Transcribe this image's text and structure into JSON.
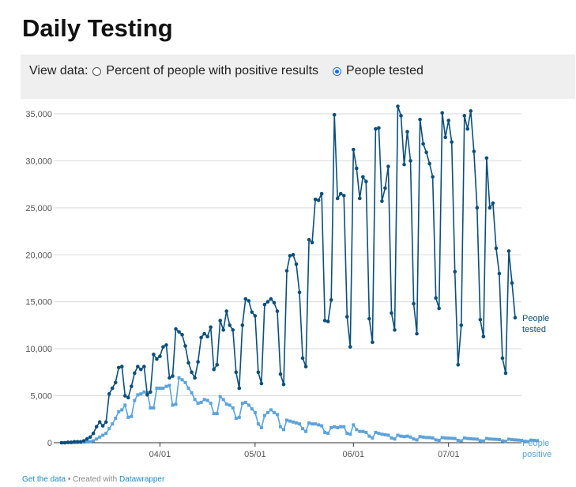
{
  "title": "Daily Testing",
  "controls": {
    "label": "View data:",
    "options": [
      {
        "label": "Percent of people with positive results",
        "selected": false
      },
      {
        "label": "People tested",
        "selected": true
      }
    ]
  },
  "footer": {
    "data_link": "Get the data",
    "separator": " • Created with ",
    "tool_link": "Datawrapper"
  },
  "colors": {
    "tested": "#0b4f7c",
    "positive": "#5ba3dc",
    "grid": "#d9d9d9",
    "axis": "#333333",
    "tick_text": "#555555",
    "accent_link": "#1a8bc1"
  },
  "chart_data": {
    "type": "line",
    "title": "Daily Testing",
    "x_start": "03/01",
    "x_interval_days": 1,
    "ylim": [
      0,
      35000
    ],
    "y_ticks": [
      0,
      5000,
      10000,
      15000,
      20000,
      25000,
      30000,
      35000
    ],
    "y_tick_labels": [
      "0",
      "5,000",
      "10,000",
      "15,000",
      "20,000",
      "25,000",
      "30,000",
      "35,000"
    ],
    "x_tick_labels": [
      "04/01",
      "05/01",
      "06/01",
      "07/01"
    ],
    "x_tick_dates": [
      "04/01",
      "05/01",
      "06/01",
      "07/01"
    ],
    "grid": true,
    "legend": "line-end labels",
    "series": [
      {
        "name": "People tested",
        "label_lines": [
          "People",
          "tested"
        ],
        "color": "#0b4f7c",
        "values": [
          0,
          0,
          50,
          50,
          100,
          100,
          100,
          200,
          400,
          600,
          1000,
          1700,
          2200,
          1800,
          2200,
          5200,
          5800,
          6400,
          8000,
          8100,
          5000,
          4800,
          6000,
          7400,
          8100,
          7800,
          8100,
          5100,
          5400,
          9400,
          8900,
          9200,
          10200,
          10400,
          6900,
          7100,
          12100,
          11800,
          11500,
          10300,
          8500,
          7500,
          6900,
          8600,
          11200,
          11600,
          11300,
          12300,
          7800,
          8300,
          13000,
          12000,
          14000,
          12500,
          12000,
          7500,
          5800,
          12500,
          15300,
          15100,
          13900,
          13500,
          7500,
          6300,
          14700,
          15000,
          15300,
          14900,
          14000,
          7300,
          6200,
          18300,
          19900,
          20000,
          19000,
          16000,
          9000,
          8100,
          21600,
          21300,
          25900,
          25800,
          26500,
          13000,
          12900,
          15200,
          34900,
          26000,
          26500,
          26300,
          13400,
          10200,
          31200,
          29200,
          26000,
          28300,
          27800,
          13200,
          10700,
          33400,
          33500,
          25700,
          27100,
          29400,
          13800,
          12000,
          35800,
          34800,
          29600,
          33100,
          30000,
          14800,
          11600,
          34400,
          31800,
          30900,
          29700,
          28300,
          15400,
          14300,
          35100,
          32500,
          34300,
          32000,
          18200,
          8300,
          12500,
          34800,
          33400,
          35300,
          31000,
          25000,
          13100,
          11300,
          30300,
          25000,
          25500,
          20700,
          18000,
          9000,
          7400,
          20400,
          17000,
          13300
        ]
      },
      {
        "name": "People positive",
        "label_lines": [
          "People",
          "positive"
        ],
        "color": "#5ba3dc",
        "values": [
          0,
          0,
          0,
          10,
          20,
          30,
          40,
          60,
          80,
          100,
          200,
          400,
          600,
          800,
          1000,
          1500,
          2000,
          2600,
          3300,
          3500,
          4000,
          2700,
          2800,
          4500,
          5100,
          5200,
          5400,
          5300,
          3700,
          3700,
          5800,
          5800,
          5800,
          6000,
          6100,
          4000,
          4100,
          6900,
          6700,
          6400,
          5800,
          5300,
          4600,
          4200,
          4300,
          4600,
          4500,
          4200,
          3100,
          3100,
          4900,
          4600,
          4100,
          4000,
          3700,
          2600,
          2700,
          4200,
          4300,
          4000,
          3600,
          3200,
          2000,
          1600,
          2900,
          3200,
          3500,
          3200,
          3000,
          1700,
          1400,
          2400,
          2300,
          2200,
          2100,
          2000,
          1500,
          1200,
          2100,
          2000,
          2000,
          1900,
          1800,
          1100,
          1000,
          1600,
          1700,
          1600,
          1700,
          1700,
          1000,
          900,
          1900,
          1400,
          1200,
          1200,
          1100,
          700,
          500,
          1100,
          1000,
          900,
          850,
          800,
          500,
          400,
          800,
          700,
          650,
          700,
          600,
          400,
          300,
          650,
          600,
          550,
          550,
          500,
          300,
          250,
          550,
          500,
          480,
          470,
          450,
          250,
          200,
          500,
          450,
          420,
          400,
          380,
          220,
          180,
          450,
          400,
          380,
          360,
          330,
          200,
          150,
          380,
          330,
          300,
          280,
          250,
          150,
          120,
          280,
          250,
          220
        ]
      }
    ]
  }
}
